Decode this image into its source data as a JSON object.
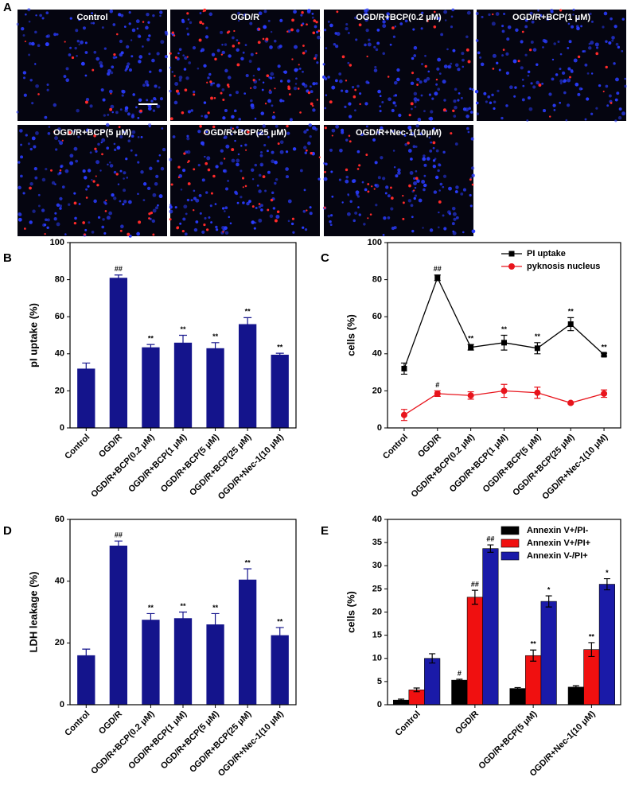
{
  "panel_a": {
    "panel_label": "A",
    "tiles": [
      "Control",
      "OGD/R",
      "OGD/R+BCP(0.2 μM)",
      "OGD/R+BCP(1 μM)",
      "OGD/R+BCP(5 μM)",
      "OGD/R+BCP(25 μM)",
      "OGD/R+Nec-1(10μM)"
    ]
  },
  "chart_data": [
    {
      "panel_label": "B",
      "type": "bar",
      "ylabel": "pI uptake (%)",
      "categories": [
        "Control",
        "OGD/R",
        "OGD/R+BCP(0.2  μM)",
        "OGD/R+BCP(1  μM)",
        "OGD/R+BCP(5  μM)",
        "OGD/R+BCP(25  μM)",
        "OGD/R+Nec-1(10  μM)"
      ],
      "values": [
        32,
        81,
        43.5,
        46,
        43,
        56,
        39.5
      ],
      "errors": [
        3,
        1.5,
        1.5,
        4,
        3,
        3.5,
        0.8
      ],
      "significance": [
        null,
        "##",
        "**",
        "**",
        "**",
        "**",
        "**"
      ],
      "color": "#14148c",
      "ylim": [
        0,
        100
      ],
      "yticks": [
        0,
        20,
        40,
        60,
        80,
        100
      ]
    },
    {
      "panel_label": "C",
      "type": "line",
      "ylabel": "cells (%)",
      "categories": [
        "Control",
        "OGD/R",
        "OGD/R+BCP(0.2  μM)",
        "OGD/R+BCP(1  μM)",
        "OGD/R+BCP(5  μM)",
        "OGD/R+BCP(25  μM)",
        "OGD/R+Nec-1(10  μM)"
      ],
      "series": [
        {
          "name": "PI uptake",
          "color": "#000000",
          "marker": "square",
          "values": [
            32,
            81,
            43.5,
            46,
            43,
            56,
            39.5
          ],
          "errors": [
            3,
            1.5,
            1.5,
            4,
            3,
            3.5,
            0.8
          ],
          "significance": [
            null,
            "##",
            "**",
            "**",
            "**",
            "**",
            "**"
          ]
        },
        {
          "name": "pyknosis nucleus",
          "color": "#e8141c",
          "marker": "circle",
          "values": [
            7,
            18.5,
            17.5,
            20,
            19,
            13.5,
            18.5
          ],
          "errors": [
            3,
            1.5,
            2,
            3.5,
            3,
            0.5,
            2
          ],
          "significance": [
            null,
            "#",
            null,
            null,
            null,
            null,
            null
          ]
        }
      ],
      "legend": "upper right",
      "ylim": [
        0,
        100
      ],
      "yticks": [
        0,
        20,
        40,
        60,
        80,
        100
      ]
    },
    {
      "panel_label": "D",
      "type": "bar",
      "ylabel": "LDH leakage (%)",
      "categories": [
        "Control",
        "OGD/R",
        "OGD/R+BCP(0.2  μM)",
        "OGD/R+BCP(1  μM)",
        "OGD/R+BCP(5  μM)",
        "OGD/R+BCP(25  μM)",
        "OGD/R+Nec-1(10  μM)"
      ],
      "values": [
        16,
        51.5,
        27.5,
        28,
        26,
        40.5,
        22.5
      ],
      "errors": [
        2,
        1.5,
        2,
        2,
        3.5,
        3.5,
        2.5
      ],
      "significance": [
        null,
        "##",
        "**",
        "**",
        "**",
        "**",
        "**"
      ],
      "color": "#14148c",
      "ylim": [
        0,
        60
      ],
      "yticks": [
        0,
        20,
        40,
        60
      ]
    },
    {
      "panel_label": "E",
      "type": "grouped_bar",
      "ylabel": "cells (%)",
      "categories": [
        "Control",
        "OGD/R",
        "OGD/R+BCP(5  μM)",
        "OGD/R+Nec-1(10  μM)"
      ],
      "series": [
        {
          "name": "Annexin V+/PI-",
          "color": "#000000",
          "values": [
            1,
            5.3,
            3.5,
            3.8
          ],
          "errors": [
            0.2,
            0.2,
            0.2,
            0.3
          ],
          "significance": [
            null,
            "#",
            null,
            null
          ]
        },
        {
          "name": "Annexin V+/PI+",
          "color": "#f01010",
          "values": [
            3.2,
            23.2,
            10.6,
            11.9
          ],
          "errors": [
            0.4,
            1.5,
            1.2,
            1.5
          ],
          "significance": [
            null,
            "##",
            "**",
            "**"
          ]
        },
        {
          "name": "Annexin V-/PI+",
          "color": "#1a1aa8",
          "values": [
            10,
            33.7,
            22.3,
            26
          ],
          "errors": [
            1,
            0.8,
            1.2,
            1.2
          ],
          "significance": [
            null,
            "##",
            "*",
            "*"
          ]
        }
      ],
      "legend": "upper right",
      "ylim": [
        0,
        40
      ],
      "yticks": [
        0,
        5,
        10,
        15,
        20,
        25,
        30,
        35,
        40
      ]
    }
  ]
}
